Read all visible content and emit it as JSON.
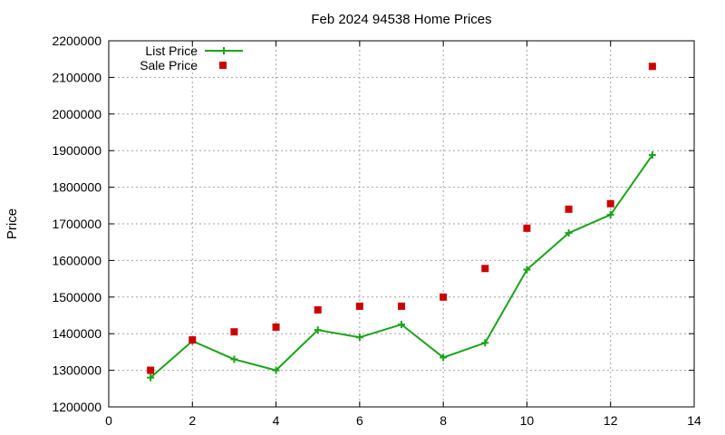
{
  "chart_data": {
    "type": "line",
    "title": "Feb 2024 94538 Home Prices",
    "xlabel": "",
    "ylabel": "Price",
    "xlim": [
      0,
      14
    ],
    "ylim": [
      1200000,
      2200000
    ],
    "xticks": [
      0,
      2,
      4,
      6,
      8,
      10,
      12,
      14
    ],
    "yticks": [
      1200000,
      1300000,
      1400000,
      1500000,
      1600000,
      1700000,
      1800000,
      1900000,
      2000000,
      2100000,
      2200000
    ],
    "grid": true,
    "legend_position": "top-left",
    "series": [
      {
        "name": "List Price",
        "style": "line-plus",
        "color": "#1aa31a",
        "x": [
          1,
          2,
          3,
          4,
          5,
          6,
          7,
          8,
          9,
          10,
          11,
          12,
          13
        ],
        "y": [
          1280000,
          1380000,
          1330000,
          1300000,
          1410000,
          1390000,
          1425000,
          1335000,
          1375000,
          1575000,
          1675000,
          1725000,
          1888000
        ]
      },
      {
        "name": "Sale Price",
        "style": "square",
        "color": "#cc0000",
        "x": [
          1,
          2,
          3,
          4,
          5,
          6,
          7,
          8,
          9,
          10,
          11,
          12,
          13
        ],
        "y": [
          1300000,
          1383000,
          1405000,
          1418000,
          1465000,
          1475000,
          1475000,
          1500000,
          1578000,
          1688000,
          1740000,
          1755000,
          2130000
        ]
      }
    ]
  }
}
